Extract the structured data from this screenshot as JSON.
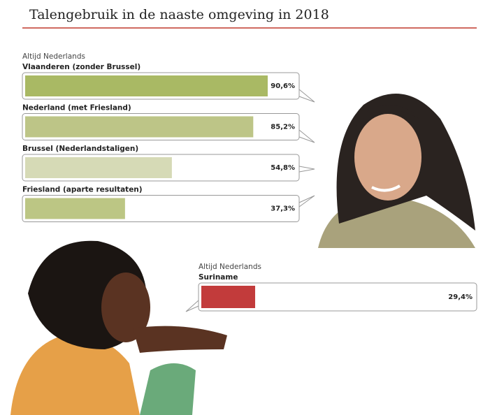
{
  "title": "Talengebruik in de naaste omgeving in 2018",
  "chart_data": [
    {
      "type": "bar",
      "subtitle": "Altijd Nederlands",
      "categories": [
        "Vlaanderen (zonder Brussel)",
        "Nederland (met Friesland)",
        "Brussel (Nederlandstaligen)",
        "Friesland (aparte resultaten)"
      ],
      "values": [
        90.6,
        85.2,
        54.8,
        37.3
      ],
      "value_labels": [
        "90,6%",
        "85,2%",
        "54,8%",
        "37,3%"
      ],
      "colors": [
        "#a9b964",
        "#bdc587",
        "#d6dab6",
        "#bcc684"
      ]
    },
    {
      "type": "bar",
      "subtitle": "Altijd Nederlands",
      "categories": [
        "Suriname"
      ],
      "values": [
        29.4
      ],
      "value_labels": [
        "29,4%"
      ],
      "colors": [
        "#c23b3b"
      ]
    }
  ]
}
